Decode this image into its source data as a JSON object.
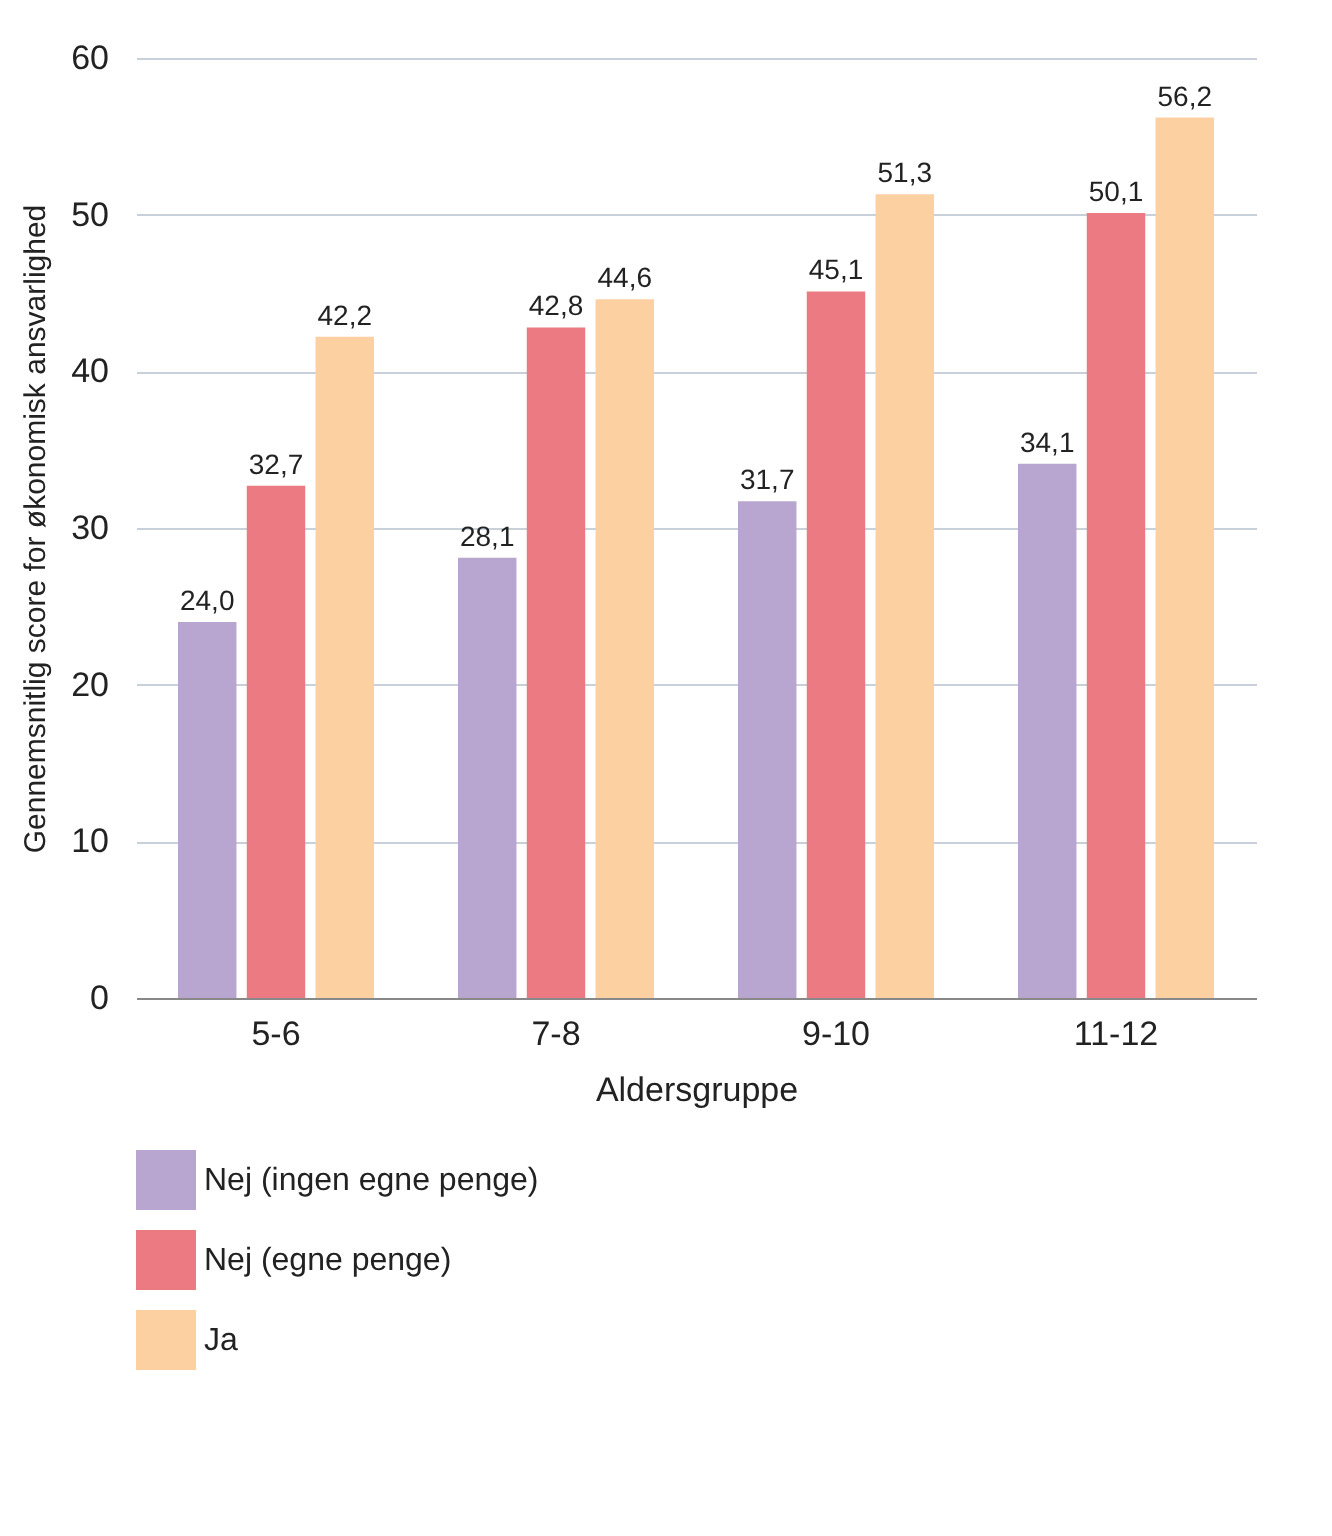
{
  "chart_data": {
    "type": "bar",
    "xlabel": "Aldersgruppe",
    "ylabel": "Gennemsnitlig score for økonomisk ansvarlighed",
    "categories": [
      "5-6",
      "7-8",
      "9-10",
      "11-12"
    ],
    "series": [
      {
        "name": "Nej (ingen egne penge)",
        "color": "#b9a6d0",
        "values": [
          24.0,
          28.1,
          31.7,
          34.1
        ],
        "value_labels": [
          "24,0",
          "28,1",
          "31,7",
          "34,1"
        ]
      },
      {
        "name": "Nej (egne penge)",
        "color": "#eb7a82",
        "values": [
          32.7,
          42.8,
          45.1,
          50.1
        ],
        "value_labels": [
          "32,7",
          "42,8",
          "45,1",
          "50,1"
        ]
      },
      {
        "name": "Ja",
        "color": "#fdd0a2",
        "values": [
          42.2,
          44.6,
          51.3,
          56.2
        ],
        "value_labels": [
          "42,2",
          "44,6",
          "51,3",
          "56,2"
        ]
      }
    ],
    "ylim": [
      0,
      60
    ],
    "yticks": [
      0,
      10,
      20,
      30,
      40,
      50,
      60
    ],
    "grid": "y",
    "legend": "bottom"
  }
}
